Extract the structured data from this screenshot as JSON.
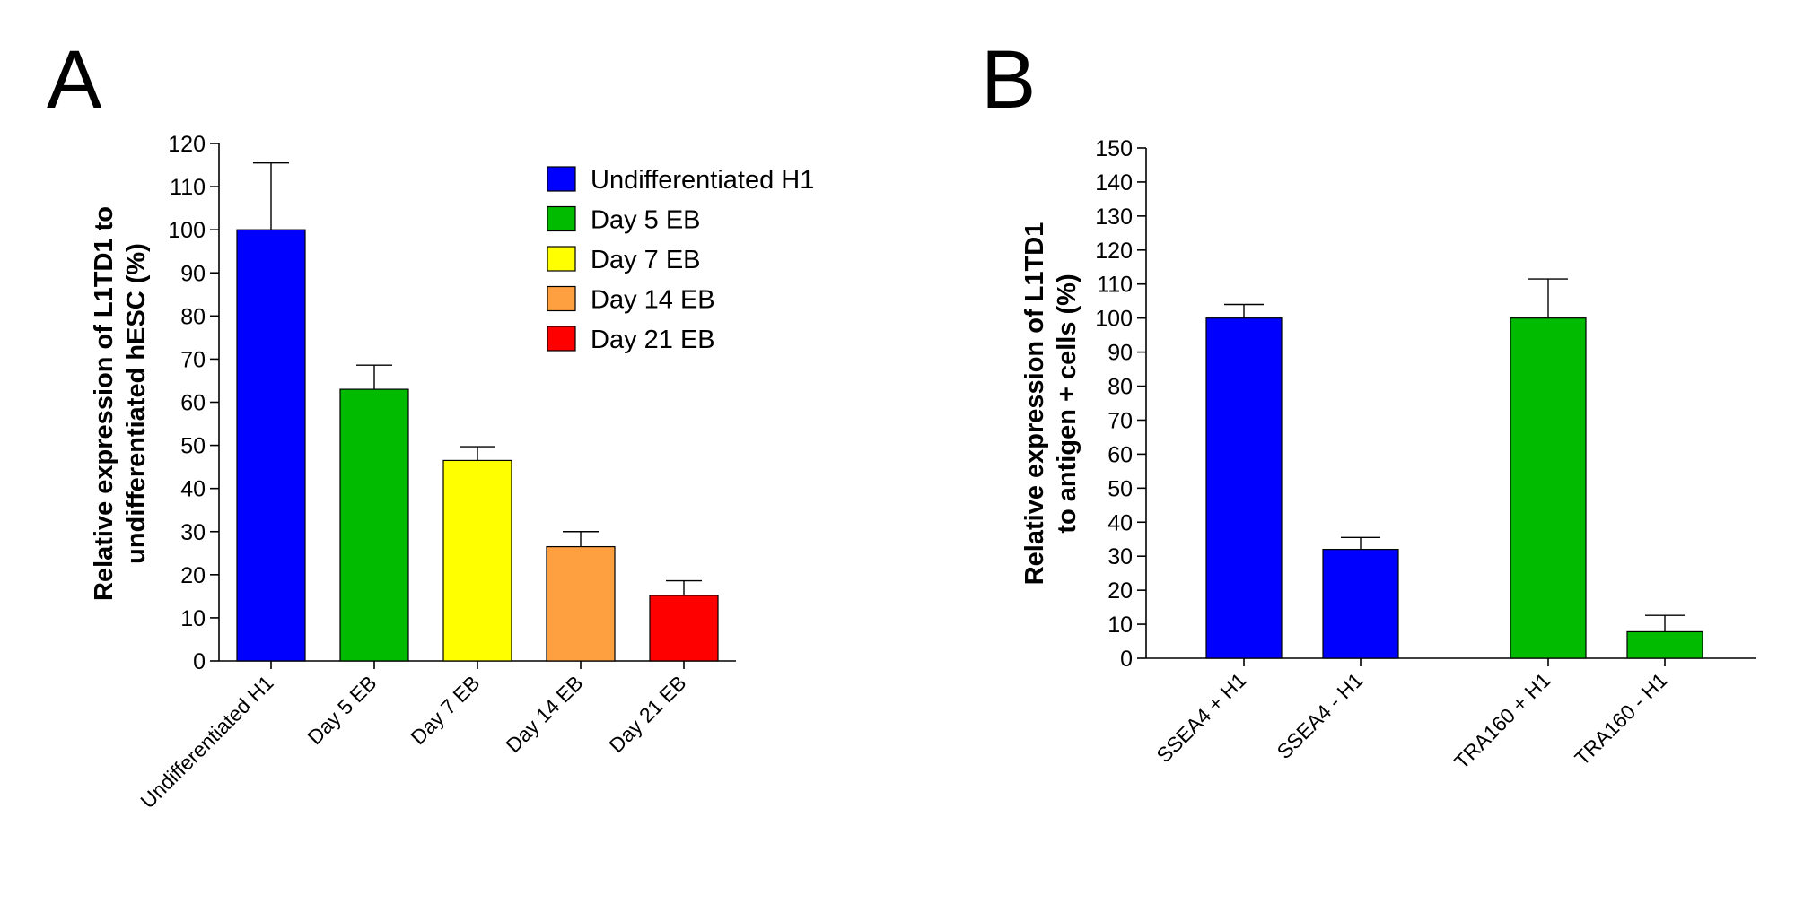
{
  "panels": [
    {
      "letter": "A"
    },
    {
      "letter": "B"
    }
  ],
  "chart_data": [
    {
      "type": "bar",
      "panel": "A",
      "categories": [
        "Undifferentiated H1",
        "Day 5 EB",
        "Day 7 EB",
        "Day 14 EB",
        "Day 21 EB"
      ],
      "values": [
        100,
        63,
        46.5,
        26.5,
        15.2
      ],
      "errors": [
        15.5,
        5.6,
        3.2,
        3.5,
        3.4
      ],
      "colors": [
        "#0000ff",
        "#00bb00",
        "#ffff00",
        "#ffa040",
        "#ff0000"
      ],
      "ylabel_lines": [
        "Relative expression of L1TD1 to",
        "undifferentiated hESC (%)"
      ],
      "ylim": [
        0,
        120
      ],
      "yticks": [
        "0",
        "10",
        "20",
        "30",
        "40",
        "50",
        "60",
        "70",
        "80",
        "90",
        "100",
        "110",
        "120"
      ],
      "legend": [
        {
          "label": "Undifferentiated H1",
          "color": "#0000ff"
        },
        {
          "label": "Day 5 EB",
          "color": "#00bb00"
        },
        {
          "label": "Day 7 EB",
          "color": "#ffff00"
        },
        {
          "label": "Day 14 EB",
          "color": "#ffa040"
        },
        {
          "label": "Day 21 EB",
          "color": "#ff0000"
        }
      ],
      "legend_position": "top-right",
      "grid": false
    },
    {
      "type": "bar",
      "panel": "B",
      "categories": [
        "SSEA4 + H1",
        "SSEA4 - H1",
        "TRA160 + H1",
        "TRA160 - H1"
      ],
      "values": [
        100,
        32,
        100,
        7.8
      ],
      "errors": [
        4,
        3.5,
        11.5,
        4.8
      ],
      "colors": [
        "#0000ff",
        "#0000ff",
        "#00bb00",
        "#00bb00"
      ],
      "ylabel_lines": [
        "Relative expression of L1TD1",
        "to antigen + cells (%)"
      ],
      "ylim": [
        0,
        150
      ],
      "yticks": [
        "0",
        "10",
        "20",
        "30",
        "40",
        "50",
        "60",
        "70",
        "80",
        "90",
        "100",
        "110",
        "120",
        "130",
        "140",
        "150"
      ],
      "grid": false
    }
  ]
}
